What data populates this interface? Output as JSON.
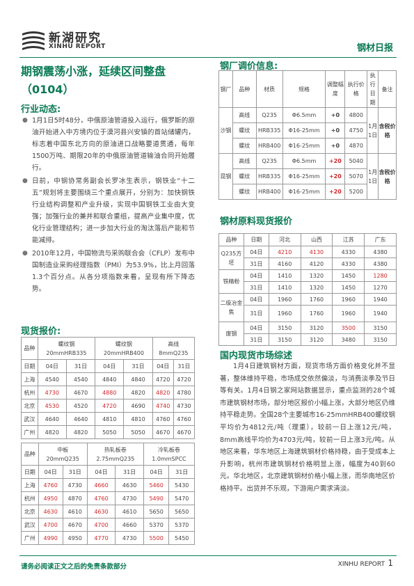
{
  "header": {
    "logo_cn": "新湖研究",
    "logo_en": "XINHU REPORT",
    "report_name": "钢材日报"
  },
  "headline": "期钢震荡小涨，延续区间整盘（0104）",
  "industry": {
    "title": "行业动态:",
    "items": [
      "1月1日5时48分，中俄原油管道投入运行，俄罗斯的原油开始进入中方境内位于漠河县兴安镇的首站储罐内，标志着中国东北方向的原油进口战略要道贯通，每年1500万吨、期限20年的中俄原油管道输油合同开始履行。",
      "日前，中钢协常务副会长罗冰生表示，钢铁业“十二五”规划将主要围绕三个重点展开，分别为：加快钢铁行业结构调整和产业升级，实现中国钢铁工业由大变强；加强行业的兼并和联合重组，提高产业集中度，优化行业管理结构；进一步加大行业的淘汰落后产能和节能减排。",
      "2010年12月，中国物流与采购联合会（CFLP）发布中国制造业采购经理指数（PMI）为53.9%，比上月回落1.3个百分点。从各分项指数来看，呈现有所下降态势。"
    ]
  },
  "spot": {
    "title": "现货报价:",
    "t1": {
      "h_name": "品种",
      "cats": [
        {
          "n1": "螺纹钢",
          "n2": "20mmHRB335"
        },
        {
          "n1": "螺纹钢",
          "n2": "20mmHRB400"
        },
        {
          "n1": "高线",
          "n2": "8mmQ235"
        }
      ],
      "date_label": "日期",
      "dates": [
        "04日",
        "31日"
      ],
      "rows": [
        {
          "city": "上海",
          "v": [
            {
              "t": "4540"
            },
            {
              "t": "4540"
            },
            {
              "t": "4840"
            },
            {
              "t": "4840"
            },
            {
              "t": "4720"
            },
            {
              "t": "4720"
            }
          ]
        },
        {
          "city": "杭州",
          "v": [
            {
              "t": "4730",
              "r": 1
            },
            {
              "t": "4670"
            },
            {
              "t": "4880",
              "r": 1
            },
            {
              "t": "4820"
            },
            {
              "t": "4820",
              "r": 1
            },
            {
              "t": "4780"
            }
          ]
        },
        {
          "city": "北京",
          "v": [
            {
              "t": "4530",
              "r": 1
            },
            {
              "t": "4520"
            },
            {
              "t": "4720",
              "r": 1
            },
            {
              "t": "4690"
            },
            {
              "t": "4740",
              "r": 1
            },
            {
              "t": "4730"
            }
          ]
        },
        {
          "city": "武汉",
          "v": [
            {
              "t": "4640"
            },
            {
              "t": "4640"
            },
            {
              "t": "4810"
            },
            {
              "t": "4810"
            },
            {
              "t": "4760"
            },
            {
              "t": "4760"
            }
          ]
        },
        {
          "city": "广州",
          "v": [
            {
              "t": "4820"
            },
            {
              "t": "4820"
            },
            {
              "t": "5050"
            },
            {
              "t": "5050"
            },
            {
              "t": "4670"
            },
            {
              "t": "4670"
            }
          ]
        }
      ]
    },
    "t2": {
      "h_name": "品种",
      "cats": [
        {
          "n1": "中板",
          "n2": "20mmQ235"
        },
        {
          "n1": "热轧板卷",
          "n2": "2.75mmQ235"
        },
        {
          "n1": "冷轧板卷",
          "n2": "1.0mmSPCC"
        }
      ],
      "date_label": "日期",
      "dates": [
        "04日",
        "31日"
      ],
      "rows": [
        {
          "city": "上海",
          "v": [
            {
              "t": "4760",
              "r": 1
            },
            {
              "t": "4730"
            },
            {
              "t": "4660",
              "r": 1
            },
            {
              "t": "4630"
            },
            {
              "t": "5460",
              "r": 1
            },
            {
              "t": "5430"
            }
          ]
        },
        {
          "city": "杭州",
          "v": [
            {
              "t": "4950",
              "r": 1
            },
            {
              "t": "4870"
            },
            {
              "t": "4760",
              "r": 1
            },
            {
              "t": "4730"
            },
            {
              "t": "5490",
              "r": 1
            },
            {
              "t": "5470"
            }
          ]
        },
        {
          "city": "北京",
          "v": [
            {
              "t": "4630",
              "r": 1
            },
            {
              "t": "4610"
            },
            {
              "t": "4630",
              "r": 1
            },
            {
              "t": "4610"
            },
            {
              "t": "5650"
            },
            {
              "t": "5650"
            }
          ]
        },
        {
          "city": "武汉",
          "v": [
            {
              "t": "4700",
              "r": 1
            },
            {
              "t": "4670"
            },
            {
              "t": "4700",
              "r": 1
            },
            {
              "t": "4660"
            },
            {
              "t": "5370"
            },
            {
              "t": "5370"
            }
          ]
        },
        {
          "city": "广州",
          "v": [
            {
              "t": "4990",
              "r": 1
            },
            {
              "t": "4950"
            },
            {
              "t": "4770",
              "r": 1
            },
            {
              "t": "4730"
            },
            {
              "t": "5500",
              "r": 1
            },
            {
              "t": "5450"
            }
          ]
        }
      ]
    }
  },
  "mill": {
    "title": "钢厂调价信息:",
    "headers": [
      "钢厂",
      "品种",
      "材质",
      "规格",
      "调整幅度",
      "执行价格",
      "执行日期",
      "备注"
    ],
    "groups": [
      {
        "mill": "沙钢",
        "date": "1月1日",
        "note": "含税价格",
        "rows": [
          {
            "kind": "高线",
            "mat": "Q235",
            "spec": "Φ6.5mm",
            "adj": "+0",
            "price": "4800"
          },
          {
            "kind": "螺纹",
            "mat": "HRB335",
            "spec": "Φ16-25mm",
            "adj": "+0",
            "price": "4750"
          },
          {
            "kind": "螺纹",
            "mat": "HRB400",
            "spec": "Φ16-25mm",
            "adj": "+0",
            "price": "4870"
          }
        ]
      },
      {
        "mill": "昆钢",
        "date": "1月1日",
        "note": "含税价格",
        "rows": [
          {
            "kind": "高线",
            "mat": "Q235",
            "spec": "Φ6.5mm",
            "adj": "+20",
            "price": "5040"
          },
          {
            "kind": "螺纹",
            "mat": "HRB335",
            "spec": "Φ16-25mm",
            "adj": "+20",
            "price": "5070"
          },
          {
            "kind": "螺纹",
            "mat": "HRB400",
            "spec": "Φ16-25mm",
            "adj": "+20",
            "price": "5200"
          }
        ]
      }
    ]
  },
  "raw": {
    "title": "钢材原料现货报价",
    "headers": [
      "品种",
      "日期",
      "河北",
      "山西",
      "江苏",
      "广东"
    ],
    "groups": [
      {
        "name": "Q235方坯",
        "rows": [
          [
            "04日",
            "4210",
            "4130",
            "4330",
            "4380"
          ],
          [
            "31日",
            "4160",
            "4120",
            "4330",
            "4380"
          ]
        ],
        "red": [
          [
            1,
            1,
            0,
            0
          ],
          [
            0,
            0,
            0,
            0
          ]
        ]
      },
      {
        "name": "铁精粉",
        "rows": [
          [
            "04日",
            "1410",
            "1320",
            "1450",
            "1280"
          ],
          [
            "31日",
            "1410",
            "1320",
            "1450",
            "1270"
          ]
        ],
        "red": [
          [
            0,
            0,
            0,
            1
          ],
          [
            0,
            0,
            0,
            0
          ]
        ]
      },
      {
        "name": "二级冶金焦",
        "rows": [
          [
            "04日",
            "1960",
            "1760",
            "1960",
            "1940"
          ],
          [
            "31日",
            "1960",
            "1760",
            "1960",
            "1940"
          ]
        ],
        "red": [
          [
            0,
            0,
            0,
            0
          ],
          [
            0,
            0,
            0,
            0
          ]
        ]
      },
      {
        "name": "废钢",
        "rows": [
          [
            "04日",
            "3150",
            "3120",
            "3500",
            "3150"
          ],
          [
            "31日",
            "3150",
            "3120",
            "3480",
            "3150"
          ]
        ],
        "red": [
          [
            0,
            0,
            1,
            0
          ],
          [
            0,
            0,
            0,
            0
          ]
        ]
      }
    ]
  },
  "review": {
    "title": "国内现货市场综述",
    "text": "1月4日建筑钢材方面，现货市场方面价格变化并不显著，整体维持平稳，市场成交依然偏淡，与消费淡季及节日等有关。1月4日钢之家网站数据显示，重点监测的28个城市建筑钢材市场，部分地区报价小幅上涨，大部分地区仍维持平稳走势。全国28个主要城市16-25mmHRB400螺纹钢平均价为4812元/吨（理重），较前一日上涨12元/吨，8mm高线平均价为4703元/吨，较前一日上涨3元/吨。从地区来看，华东地区上海建筑钢材价格持稳，由于受成本上升影响，杭州市建筑钢材价格明显上涨，幅度为40到60元。华北地区，北京建筑钢材价格小幅上涨，而华南地区价格持平。出货并不乐观，下游用户需求清淡。"
  },
  "footer": {
    "disclaimer": "请务必阅读正文之后的免责条款部分",
    "brand": "XINHU REPORT",
    "page": "1"
  }
}
